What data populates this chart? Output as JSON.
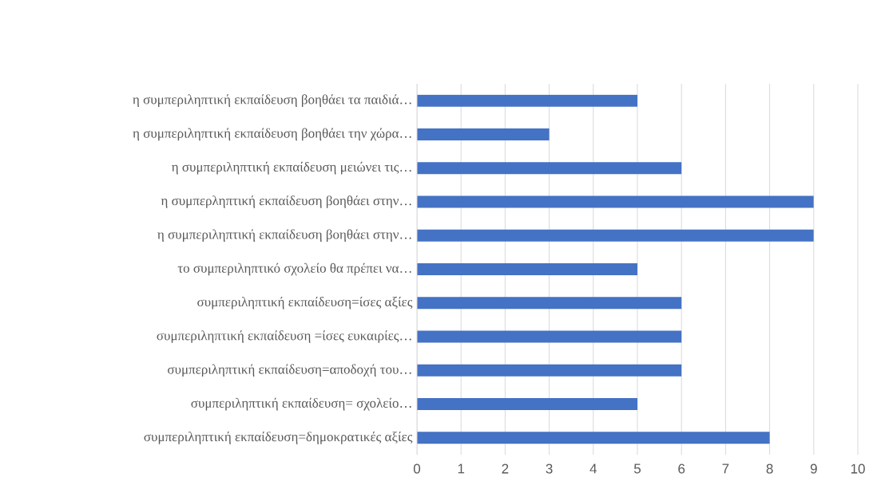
{
  "chart_data": {
    "type": "bar",
    "orientation": "horizontal",
    "categories": [
      "η συμπεριληπτική εκπαίδευση βοηθάει τα παιδιά…",
      "η συμπεριληπτική εκπαίδευση βοηθάει την χώρα…",
      "η συμπεριληπτική εκπαίδευση μειώνει τις…",
      "η συμπερληπτική εκπαίδευση βοηθάει στην…",
      "η συμπεριληπτική εκπαίδευση βοηθάει στην…",
      "το συμπεριληπτικό σχολείο θα πρέπει να…",
      "συμπεριληπτική εκπαίδευση=ίσες αξίες",
      "συμπεριληπτική εκπαίδευση =ίσες ευκαιρίες…",
      "συμπεριληπτική εκπαίδευση=αποδοχή του…",
      "συμπεριληπτική εκπαίδευση= σχολείο…",
      "συμπεριληπτική εκπαίδευση=δημοκρατικές αξίες"
    ],
    "values": [
      5,
      3,
      6,
      9,
      9,
      5,
      6,
      6,
      6,
      5,
      8
    ],
    "color": "#4472c4",
    "xlim": [
      0,
      10
    ],
    "xticks": [
      0,
      1,
      2,
      3,
      4,
      5,
      6,
      7,
      8,
      9,
      10
    ],
    "grid": "x"
  }
}
